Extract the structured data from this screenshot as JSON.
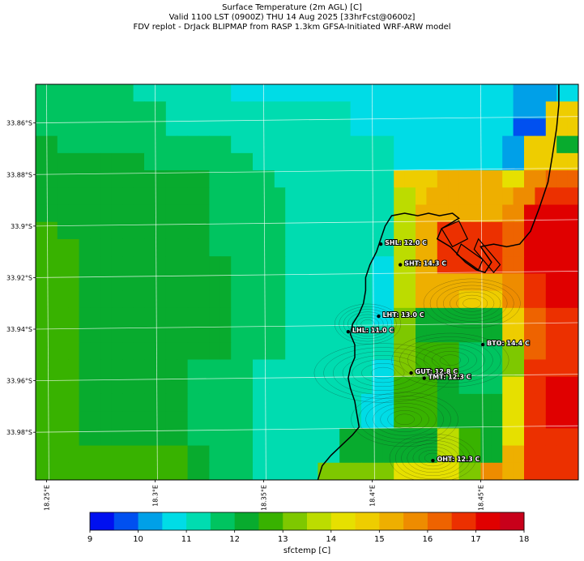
{
  "titles": {
    "line1": "Surface Temperature (2m AGL) [C]",
    "line2": "Valid 1100 LST (0900Z) THU 14 Aug 2025 [33hrFcst@0600z]",
    "line3": "FDV replot - DrJack BLIPMAP from RASP 1.3km GFSA-Initiated WRF-ARW model"
  },
  "lat_ticks": [
    {
      "label": "33.86°S",
      "lat": -33.86
    },
    {
      "label": "33.88°S",
      "lat": -33.88
    },
    {
      "label": "33.9°S",
      "lat": -33.9
    },
    {
      "label": "33.92°S",
      "lat": -33.92
    },
    {
      "label": "33.94°S",
      "lat": -33.94
    },
    {
      "label": "33.96°S",
      "lat": -33.96
    },
    {
      "label": "33.98°S",
      "lat": -33.98
    }
  ],
  "lon_ticks": [
    {
      "label": "18.25°E",
      "lon": 18.25
    },
    {
      "label": "18.3°E",
      "lon": 18.3
    },
    {
      "label": "18.35°E",
      "lon": 18.35
    },
    {
      "label": "18.4°E",
      "lon": 18.4
    },
    {
      "label": "18.45°E",
      "lon": 18.45
    }
  ],
  "stations": [
    {
      "label": "SHL: 12.0 C",
      "lon": 18.404,
      "lat": -33.907
    },
    {
      "label": "SHT: 14.3 C",
      "lon": 18.413,
      "lat": -33.915
    },
    {
      "label": "LHT: 13.0 C",
      "lon": 18.403,
      "lat": -33.935
    },
    {
      "label": "LHL: 11.0 C",
      "lon": 18.389,
      "lat": -33.941
    },
    {
      "label": "BTO: 14.4 C",
      "lon": 18.451,
      "lat": -33.946
    },
    {
      "label": "GUT: 12.8 C",
      "lon": 18.418,
      "lat": -33.957
    },
    {
      "label": "TMT: 12.3 C",
      "lon": 18.424,
      "lat": -33.959
    },
    {
      "label": "OHT: 12.3 C",
      "lon": 18.428,
      "lat": -33.991
    }
  ],
  "colorbar": {
    "label": "sfctemp [C]",
    "min": 9,
    "max": 18,
    "step": 0.5,
    "tick_values": [
      9,
      10,
      11,
      12,
      13,
      14,
      15,
      16,
      17,
      18
    ],
    "colors": [
      "#0010f0",
      "#0050f0",
      "#00a0e8",
      "#00dce6",
      "#00dcb0",
      "#00c460",
      "#08ab2e",
      "#38b200",
      "#7ec800",
      "#bcdc00",
      "#e6e000",
      "#eecd00",
      "#eeaf00",
      "#ee8c00",
      "#ee6300",
      "#ec3000",
      "#e00000",
      "#c8001a"
    ]
  },
  "map": {
    "lon_range": [
      18.245,
      18.495
    ],
    "lat_range": [
      -33.9985,
      -33.845
    ],
    "grid_note": "rows top to bottom, each row a list of color-bin indices (0 = 9.0-9.5 C)",
    "temperature_bins": [
      [
        5,
        5,
        5,
        5,
        5,
        5,
        5,
        5,
        5,
        4,
        4,
        4,
        4,
        4,
        4,
        4,
        4,
        4,
        3,
        3,
        3,
        3,
        3,
        3,
        3,
        3,
        3,
        3,
        3,
        3,
        3,
        3,
        3,
        3,
        3,
        3,
        3,
        3,
        3,
        3,
        3,
        3,
        3,
        3,
        2,
        2,
        2,
        2,
        3,
        3
      ],
      [
        5,
        5,
        5,
        5,
        5,
        5,
        5,
        5,
        5,
        5,
        5,
        5,
        4,
        4,
        4,
        4,
        4,
        4,
        4,
        4,
        4,
        4,
        4,
        4,
        4,
        4,
        4,
        4,
        4,
        3,
        3,
        3,
        3,
        3,
        3,
        3,
        3,
        3,
        3,
        3,
        3,
        3,
        3,
        3,
        2,
        2,
        2,
        11,
        11,
        11
      ],
      [
        5,
        5,
        5,
        5,
        5,
        5,
        5,
        5,
        5,
        5,
        5,
        5,
        4,
        4,
        4,
        4,
        4,
        4,
        4,
        4,
        4,
        4,
        4,
        4,
        4,
        4,
        4,
        4,
        4,
        3,
        3,
        3,
        3,
        3,
        3,
        3,
        3,
        3,
        3,
        3,
        3,
        3,
        3,
        3,
        1,
        1,
        1,
        11,
        11,
        11
      ],
      [
        6,
        6,
        5,
        5,
        5,
        5,
        5,
        5,
        5,
        5,
        5,
        5,
        5,
        5,
        5,
        5,
        5,
        5,
        4,
        4,
        4,
        4,
        4,
        4,
        4,
        4,
        4,
        4,
        4,
        4,
        4,
        4,
        4,
        3,
        3,
        3,
        3,
        3,
        3,
        3,
        3,
        3,
        3,
        2,
        2,
        11,
        11,
        11,
        6,
        6
      ],
      [
        6,
        6,
        6,
        6,
        6,
        6,
        6,
        6,
        6,
        6,
        5,
        5,
        5,
        5,
        5,
        5,
        5,
        5,
        5,
        5,
        4,
        4,
        4,
        4,
        4,
        4,
        4,
        4,
        4,
        4,
        4,
        4,
        4,
        3,
        3,
        3,
        3,
        3,
        3,
        3,
        3,
        3,
        3,
        2,
        2,
        11,
        11,
        11,
        11,
        11
      ],
      [
        6,
        6,
        6,
        6,
        6,
        6,
        6,
        6,
        6,
        6,
        6,
        6,
        6,
        6,
        6,
        6,
        5,
        5,
        5,
        5,
        5,
        5,
        4,
        4,
        4,
        4,
        4,
        4,
        4,
        4,
        4,
        4,
        4,
        11,
        11,
        11,
        11,
        12,
        12,
        12,
        12,
        12,
        12,
        10,
        10,
        13,
        13,
        14,
        14,
        14
      ],
      [
        6,
        6,
        6,
        6,
        6,
        6,
        6,
        6,
        6,
        6,
        6,
        6,
        6,
        6,
        6,
        6,
        5,
        5,
        5,
        5,
        5,
        5,
        5,
        4,
        4,
        4,
        4,
        4,
        4,
        4,
        4,
        4,
        4,
        9,
        9,
        11,
        12,
        12,
        12,
        12,
        12,
        12,
        12,
        12,
        13,
        13,
        15,
        15,
        15,
        15
      ],
      [
        6,
        6,
        6,
        6,
        6,
        6,
        6,
        6,
        6,
        6,
        6,
        6,
        6,
        6,
        6,
        6,
        5,
        5,
        5,
        5,
        5,
        5,
        5,
        4,
        4,
        4,
        4,
        4,
        4,
        4,
        4,
        4,
        4,
        9,
        9,
        12,
        12,
        12,
        12,
        12,
        12,
        12,
        12,
        13,
        13,
        16,
        16,
        16,
        16,
        16
      ],
      [
        7,
        7,
        6,
        6,
        6,
        6,
        6,
        6,
        6,
        6,
        6,
        6,
        6,
        6,
        6,
        6,
        5,
        5,
        5,
        5,
        5,
        5,
        5,
        4,
        4,
        4,
        4,
        4,
        4,
        4,
        4,
        4,
        4,
        9,
        9,
        12,
        12,
        15,
        15,
        15,
        15,
        15,
        15,
        14,
        14,
        16,
        16,
        16,
        16,
        16
      ],
      [
        7,
        7,
        7,
        7,
        6,
        6,
        6,
        6,
        6,
        6,
        6,
        6,
        6,
        6,
        6,
        6,
        5,
        5,
        5,
        5,
        5,
        5,
        5,
        4,
        4,
        4,
        4,
        4,
        4,
        4,
        4,
        4,
        4,
        9,
        9,
        12,
        12,
        15,
        15,
        15,
        15,
        15,
        15,
        14,
        14,
        16,
        16,
        16,
        16,
        16
      ],
      [
        7,
        7,
        7,
        7,
        6,
        6,
        6,
        6,
        6,
        6,
        6,
        6,
        6,
        6,
        6,
        6,
        6,
        6,
        5,
        5,
        5,
        5,
        5,
        4,
        4,
        4,
        4,
        4,
        4,
        4,
        4,
        3,
        3,
        9,
        9,
        12,
        12,
        15,
        15,
        15,
        15,
        15,
        15,
        14,
        14,
        16,
        16,
        16,
        16,
        16
      ],
      [
        7,
        7,
        7,
        7,
        6,
        6,
        6,
        6,
        6,
        6,
        6,
        6,
        6,
        6,
        6,
        6,
        6,
        6,
        5,
        5,
        5,
        5,
        5,
        4,
        4,
        4,
        4,
        4,
        4,
        4,
        4,
        3,
        3,
        9,
        9,
        12,
        12,
        12,
        12,
        12,
        12,
        12,
        12,
        13,
        13,
        15,
        15,
        16,
        16,
        16
      ],
      [
        7,
        7,
        7,
        7,
        6,
        6,
        6,
        6,
        6,
        6,
        6,
        6,
        6,
        6,
        6,
        6,
        6,
        6,
        5,
        5,
        5,
        5,
        5,
        4,
        4,
        4,
        4,
        4,
        4,
        4,
        4,
        3,
        3,
        9,
        9,
        12,
        12,
        12,
        12,
        11,
        11,
        11,
        11,
        13,
        13,
        15,
        15,
        16,
        16,
        16
      ],
      [
        7,
        7,
        7,
        7,
        6,
        6,
        6,
        6,
        6,
        6,
        6,
        6,
        6,
        6,
        6,
        6,
        6,
        6,
        5,
        5,
        5,
        5,
        5,
        4,
        4,
        4,
        4,
        4,
        4,
        4,
        4,
        3,
        3,
        8,
        8,
        6,
        6,
        6,
        6,
        6,
        6,
        6,
        6,
        11,
        11,
        14,
        14,
        15,
        15,
        15
      ],
      [
        7,
        7,
        7,
        7,
        6,
        6,
        6,
        6,
        6,
        6,
        6,
        6,
        6,
        6,
        6,
        6,
        6,
        6,
        5,
        5,
        5,
        5,
        5,
        4,
        4,
        4,
        4,
        4,
        4,
        4,
        4,
        4,
        4,
        8,
        8,
        6,
        6,
        6,
        6,
        6,
        6,
        6,
        6,
        11,
        11,
        14,
        14,
        15,
        15,
        15
      ],
      [
        7,
        7,
        7,
        7,
        6,
        6,
        6,
        6,
        6,
        6,
        6,
        6,
        6,
        6,
        6,
        6,
        6,
        6,
        5,
        5,
        5,
        5,
        5,
        4,
        4,
        4,
        4,
        4,
        4,
        4,
        4,
        4,
        4,
        8,
        8,
        7,
        7,
        7,
        7,
        5,
        5,
        5,
        5,
        8,
        8,
        14,
        14,
        15,
        15,
        15
      ],
      [
        7,
        7,
        7,
        7,
        6,
        6,
        6,
        6,
        6,
        6,
        6,
        6,
        6,
        6,
        5,
        5,
        5,
        5,
        5,
        5,
        4,
        4,
        4,
        4,
        4,
        4,
        4,
        4,
        4,
        4,
        4,
        3,
        3,
        8,
        8,
        7,
        7,
        7,
        7,
        5,
        5,
        5,
        5,
        8,
        8,
        15,
        15,
        15,
        15,
        15
      ],
      [
        7,
        7,
        7,
        7,
        6,
        6,
        6,
        6,
        6,
        6,
        6,
        6,
        6,
        6,
        5,
        5,
        5,
        5,
        5,
        5,
        4,
        4,
        4,
        4,
        4,
        4,
        4,
        4,
        4,
        4,
        4,
        3,
        3,
        7,
        7,
        7,
        7,
        6,
        6,
        5,
        5,
        5,
        5,
        10,
        10,
        15,
        15,
        16,
        16,
        16
      ],
      [
        7,
        7,
        7,
        7,
        6,
        6,
        6,
        6,
        6,
        6,
        6,
        6,
        6,
        6,
        5,
        5,
        5,
        5,
        5,
        5,
        4,
        4,
        4,
        4,
        4,
        4,
        4,
        4,
        4,
        4,
        3,
        3,
        3,
        7,
        7,
        7,
        7,
        6,
        6,
        6,
        6,
        6,
        6,
        10,
        10,
        15,
        15,
        16,
        16,
        16
      ],
      [
        7,
        7,
        7,
        7,
        6,
        6,
        6,
        6,
        6,
        6,
        6,
        6,
        6,
        6,
        5,
        5,
        5,
        5,
        5,
        5,
        4,
        4,
        4,
        4,
        4,
        4,
        4,
        4,
        4,
        4,
        3,
        3,
        3,
        7,
        7,
        7,
        7,
        6,
        6,
        6,
        6,
        6,
        6,
        10,
        10,
        15,
        15,
        16,
        16,
        16
      ],
      [
        7,
        7,
        7,
        7,
        6,
        6,
        6,
        6,
        6,
        6,
        6,
        6,
        6,
        6,
        5,
        5,
        5,
        5,
        5,
        5,
        4,
        4,
        4,
        4,
        4,
        4,
        4,
        4,
        6,
        6,
        6,
        6,
        6,
        6,
        6,
        6,
        6,
        9,
        9,
        7,
        7,
        6,
        6,
        10,
        10,
        15,
        15,
        15,
        15,
        15
      ],
      [
        7,
        7,
        7,
        7,
        7,
        7,
        7,
        7,
        7,
        7,
        7,
        7,
        7,
        7,
        6,
        6,
        5,
        5,
        5,
        5,
        4,
        4,
        4,
        4,
        4,
        4,
        4,
        4,
        6,
        6,
        6,
        6,
        6,
        6,
        6,
        6,
        6,
        9,
        9,
        7,
        7,
        6,
        6,
        12,
        12,
        15,
        15,
        15,
        15,
        15
      ],
      [
        7,
        7,
        7,
        7,
        7,
        7,
        7,
        7,
        7,
        7,
        7,
        7,
        7,
        7,
        6,
        6,
        5,
        5,
        5,
        5,
        4,
        4,
        4,
        4,
        4,
        4,
        8,
        8,
        8,
        8,
        8,
        8,
        8,
        10,
        10,
        10,
        10,
        10,
        10,
        8,
        8,
        13,
        13,
        12,
        12,
        15,
        15,
        15,
        15,
        15
      ]
    ],
    "coastline": [
      [
        18.375,
        -33.9985
      ],
      [
        18.377,
        -33.993
      ],
      [
        18.381,
        -33.989
      ],
      [
        18.386,
        -33.985
      ],
      [
        18.391,
        -33.981
      ],
      [
        18.394,
        -33.978
      ],
      [
        18.393,
        -33.973
      ],
      [
        18.392,
        -33.968
      ],
      [
        18.39,
        -33.963
      ],
      [
        18.389,
        -33.959
      ],
      [
        18.39,
        -33.955
      ],
      [
        18.392,
        -33.951
      ],
      [
        18.392,
        -33.946
      ],
      [
        18.39,
        -33.942
      ],
      [
        18.391,
        -33.938
      ],
      [
        18.394,
        -33.934
      ],
      [
        18.396,
        -33.93
      ],
      [
        18.397,
        -33.925
      ],
      [
        18.397,
        -33.92
      ],
      [
        18.399,
        -33.915
      ],
      [
        18.402,
        -33.91
      ],
      [
        18.404,
        -33.905
      ],
      [
        18.406,
        -33.9
      ],
      [
        18.409,
        -33.896
      ],
      [
        18.415,
        -33.895
      ],
      [
        18.421,
        -33.896
      ],
      [
        18.426,
        -33.895
      ],
      [
        18.431,
        -33.896
      ],
      [
        18.437,
        -33.895
      ],
      [
        18.44,
        -33.897
      ],
      [
        18.432,
        -33.901
      ],
      [
        18.43,
        -33.905
      ],
      [
        18.436,
        -33.908
      ],
      [
        18.443,
        -33.914
      ],
      [
        18.448,
        -33.917
      ],
      [
        18.452,
        -33.918
      ],
      [
        18.455,
        -33.914
      ],
      [
        18.45,
        -33.908
      ],
      [
        18.456,
        -33.907
      ],
      [
        18.462,
        -33.908
      ],
      [
        18.468,
        -33.907
      ],
      [
        18.473,
        -33.902
      ],
      [
        18.477,
        -33.893
      ],
      [
        18.481,
        -33.883
      ],
      [
        18.483,
        -33.873
      ],
      [
        18.485,
        -33.862
      ],
      [
        18.486,
        -33.853
      ],
      [
        18.486,
        -33.845
      ]
    ],
    "harbour": [
      [
        [
          18.432,
          -33.901
        ],
        [
          18.44,
          -33.898
        ],
        [
          18.444,
          -33.905
        ],
        [
          18.437,
          -33.908
        ]
      ],
      [
        [
          18.441,
          -33.907
        ],
        [
          18.451,
          -33.913
        ],
        [
          18.449,
          -33.917
        ],
        [
          18.439,
          -33.911
        ]
      ],
      [
        [
          18.449,
          -33.905
        ],
        [
          18.459,
          -33.915
        ],
        [
          18.456,
          -33.918
        ],
        [
          18.447,
          -33.909
        ]
      ]
    ],
    "graticule_color": "#ffffff"
  }
}
